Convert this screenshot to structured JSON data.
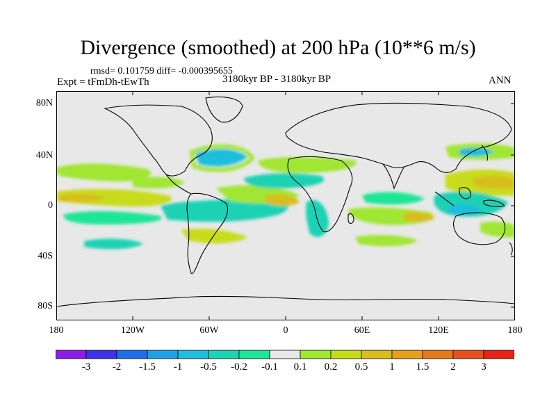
{
  "title": "Divergence (smoothed) at 200 hPa (10**6 m/s)",
  "stats": "rmsd= 0.101759 diff= -0.000395655",
  "experiment": "Expt = tFmDh-tEwTh",
  "period": "3180kyr BP - 3180kyr BP",
  "season": "ANN",
  "y_axis": [
    "80N",
    "40N",
    "0",
    "40S",
    "80S"
  ],
  "x_axis": [
    "180",
    "120W",
    "60W",
    "0",
    "60E",
    "120E",
    "180"
  ],
  "colorbar": {
    "colors": [
      "#8a1ee6",
      "#3c32e6",
      "#1e6ee6",
      "#1ea0e6",
      "#1ebedc",
      "#1ed2b4",
      "#1ee696",
      "#e8e8e8",
      "#a0e632",
      "#c8dc1e",
      "#d7be1e",
      "#e6a01e",
      "#e6781e",
      "#e6501e",
      "#e62314"
    ],
    "labels": [
      "-3",
      "-2",
      "-1.5",
      "-1",
      "-0.5",
      "-0.2",
      "-0.1",
      "0.1",
      "0.2",
      "0.5",
      "1",
      "1.5",
      "2",
      "3"
    ]
  },
  "colors": {
    "background": "#e8e8e8",
    "positive_light": "#a0e632",
    "positive_mid": "#c8dc1e",
    "positive_strong": "#d7be1e",
    "negative_light": "#1ee696",
    "negative_mid": "#1ed2b4",
    "negative_strong": "#1ebedc"
  }
}
